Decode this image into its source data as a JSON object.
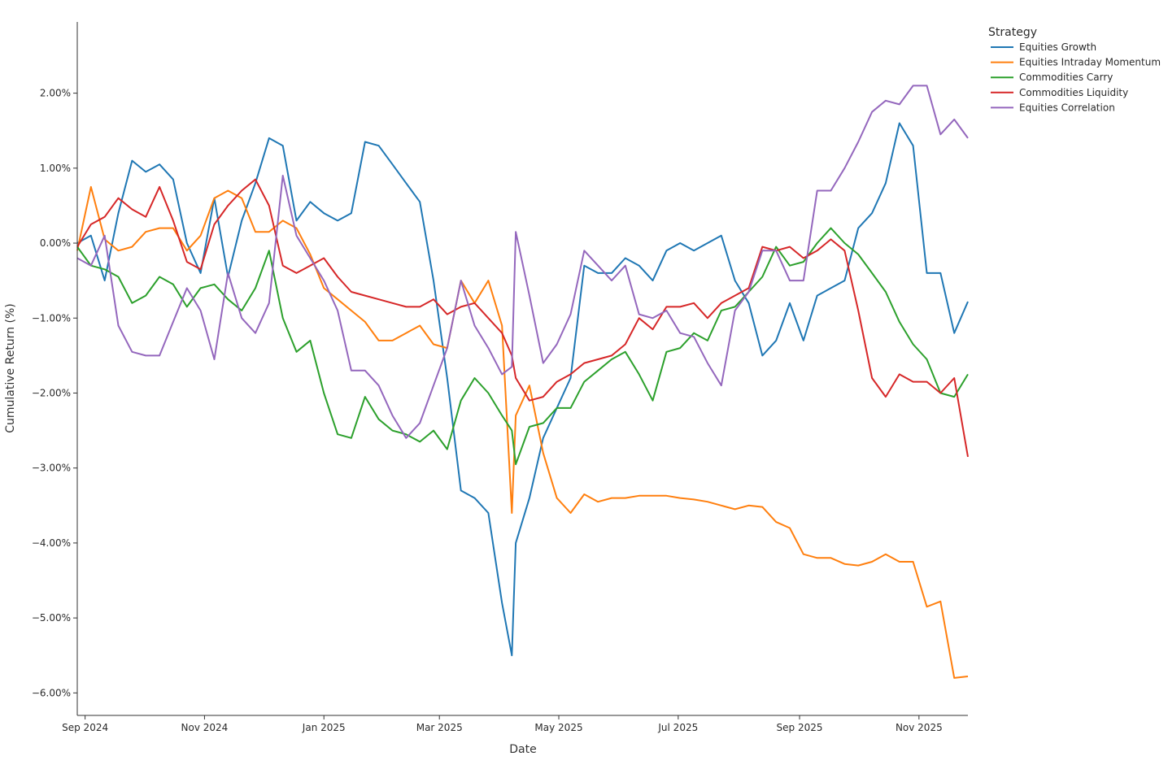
{
  "chart_data": {
    "type": "line",
    "title": "",
    "xlabel": "Date",
    "ylabel": "Cumulative Return (%)",
    "ylim": [
      -6.3,
      2.95
    ],
    "xlim": [
      "2024-08-28",
      "2025-11-26"
    ],
    "grid": false,
    "legend": {
      "title": "Strategy",
      "placement": "top-right, outside plot"
    },
    "x_ticks": [
      {
        "date": "2024-09-01",
        "label": "Sep 2024"
      },
      {
        "date": "2024-11-01",
        "label": "Nov 2024"
      },
      {
        "date": "2025-01-01",
        "label": "Jan 2025"
      },
      {
        "date": "2025-03-01",
        "label": "Mar 2025"
      },
      {
        "date": "2025-05-01",
        "label": "May 2025"
      },
      {
        "date": "2025-07-01",
        "label": "Jul 2025"
      },
      {
        "date": "2025-09-01",
        "label": "Sep 2025"
      },
      {
        "date": "2025-11-01",
        "label": "Nov 2025"
      }
    ],
    "y_ticks": [
      {
        "value": 2,
        "label": "2.00%"
      },
      {
        "value": 1,
        "label": "1.00%"
      },
      {
        "value": 0,
        "label": "0.00%"
      },
      {
        "value": -1,
        "label": "−1.00%"
      },
      {
        "value": -2,
        "label": "−2.00%"
      },
      {
        "value": -3,
        "label": "−3.00%"
      },
      {
        "value": -4,
        "label": "−4.00%"
      },
      {
        "value": -5,
        "label": "−5.00%"
      },
      {
        "value": -6,
        "label": "−6.00%"
      }
    ],
    "x": [
      "2024-08-28",
      "2024-09-04",
      "2024-09-11",
      "2024-09-18",
      "2024-09-25",
      "2024-10-02",
      "2024-10-09",
      "2024-10-16",
      "2024-10-23",
      "2024-10-30",
      "2024-11-06",
      "2024-11-13",
      "2024-11-20",
      "2024-11-27",
      "2024-12-04",
      "2024-12-11",
      "2024-12-18",
      "2024-12-25",
      "2025-01-01",
      "2025-01-08",
      "2025-01-15",
      "2025-01-22",
      "2025-01-29",
      "2025-02-05",
      "2025-02-12",
      "2025-02-19",
      "2025-02-26",
      "2025-03-05",
      "2025-03-12",
      "2025-03-19",
      "2025-03-26",
      "2025-04-02",
      "2025-04-07",
      "2025-04-09",
      "2025-04-16",
      "2025-04-23",
      "2025-04-30",
      "2025-05-07",
      "2025-05-14",
      "2025-05-21",
      "2025-05-28",
      "2025-06-04",
      "2025-06-11",
      "2025-06-18",
      "2025-06-25",
      "2025-07-02",
      "2025-07-09",
      "2025-07-16",
      "2025-07-23",
      "2025-07-30",
      "2025-08-06",
      "2025-08-13",
      "2025-08-20",
      "2025-08-27",
      "2025-09-03",
      "2025-09-10",
      "2025-09-17",
      "2025-09-24",
      "2025-10-01",
      "2025-10-08",
      "2025-10-15",
      "2025-10-22",
      "2025-10-29",
      "2025-11-05",
      "2025-11-12",
      "2025-11-19",
      "2025-11-26"
    ],
    "series": [
      {
        "name": "Equities Growth",
        "color": "#1f77b4",
        "values": [
          0.0,
          0.1,
          -0.5,
          0.4,
          1.1,
          0.95,
          1.05,
          0.85,
          0.0,
          -0.4,
          0.6,
          -0.45,
          0.3,
          0.8,
          1.4,
          1.3,
          0.3,
          0.55,
          0.4,
          0.3,
          0.4,
          1.35,
          1.3,
          1.05,
          0.8,
          0.55,
          -0.5,
          -1.8,
          -3.3,
          -3.4,
          -3.6,
          -4.8,
          -5.5,
          -4.0,
          -3.4,
          -2.6,
          -2.2,
          -1.8,
          -0.3,
          -0.4,
          -0.4,
          -0.2,
          -0.3,
          -0.5,
          -0.1,
          0.0,
          -0.1,
          0.0,
          0.1,
          -0.5,
          -0.8,
          -1.5,
          -1.3,
          -0.8,
          -1.3,
          -0.7,
          -0.6,
          -0.5,
          0.2,
          0.4,
          0.8,
          1.6,
          1.3,
          -0.4,
          -0.4,
          -1.2,
          -0.78
        ]
      },
      {
        "name": "Equities Intraday Momentum",
        "color": "#ff7f0e",
        "values": [
          -0.1,
          0.75,
          0.05,
          -0.1,
          -0.05,
          0.15,
          0.2,
          0.2,
          -0.1,
          0.1,
          0.6,
          0.7,
          0.6,
          0.15,
          0.15,
          0.3,
          0.2,
          -0.15,
          -0.6,
          -0.75,
          -0.9,
          -1.05,
          -1.3,
          -1.3,
          -1.2,
          -1.1,
          -1.35,
          -1.4,
          -0.5,
          -0.8,
          -0.5,
          -1.1,
          -3.6,
          -2.3,
          -1.9,
          -2.8,
          -3.4,
          -3.6,
          -3.35,
          -3.45,
          -3.4,
          -3.4,
          -3.37,
          -3.37,
          -3.37,
          -3.4,
          -3.42,
          -3.45,
          -3.5,
          -3.55,
          -3.5,
          -3.52,
          -3.72,
          -3.8,
          -4.15,
          -4.2,
          -4.2,
          -4.28,
          -4.3,
          -4.25,
          -4.15,
          -4.25,
          -4.25,
          -4.85,
          -4.78,
          -5.8,
          -5.78
        ]
      },
      {
        "name": "Commodities Carry",
        "color": "#2ca02c",
        "values": [
          -0.05,
          -0.3,
          -0.35,
          -0.45,
          -0.8,
          -0.7,
          -0.45,
          -0.55,
          -0.85,
          -0.6,
          -0.55,
          -0.75,
          -0.9,
          -0.6,
          -0.1,
          -1.0,
          -1.45,
          -1.3,
          -2.0,
          -2.55,
          -2.6,
          -2.05,
          -2.35,
          -2.5,
          -2.55,
          -2.65,
          -2.5,
          -2.75,
          -2.1,
          -1.8,
          -2.0,
          -2.3,
          -2.5,
          -2.95,
          -2.45,
          -2.4,
          -2.2,
          -2.2,
          -1.85,
          -1.7,
          -1.55,
          -1.45,
          -1.75,
          -2.1,
          -1.45,
          -1.4,
          -1.2,
          -1.3,
          -0.9,
          -0.85,
          -0.65,
          -0.45,
          -0.05,
          -0.3,
          -0.25,
          0.0,
          0.2,
          0.0,
          -0.15,
          -0.4,
          -0.65,
          -1.05,
          -1.35,
          -1.55,
          -2.0,
          -2.05,
          -1.75
        ]
      },
      {
        "name": "Commodities Liquidity",
        "color": "#d62728",
        "values": [
          -0.05,
          0.25,
          0.35,
          0.6,
          0.45,
          0.35,
          0.75,
          0.3,
          -0.25,
          -0.35,
          0.25,
          0.5,
          0.7,
          0.85,
          0.5,
          -0.3,
          -0.4,
          -0.3,
          -0.2,
          -0.45,
          -0.65,
          -0.7,
          -0.75,
          -0.8,
          -0.85,
          -0.85,
          -0.75,
          -0.95,
          -0.85,
          -0.8,
          -1.0,
          -1.2,
          -1.5,
          -1.8,
          -2.1,
          -2.05,
          -1.85,
          -1.75,
          -1.6,
          -1.55,
          -1.5,
          -1.35,
          -1.0,
          -1.15,
          -0.85,
          -0.85,
          -0.8,
          -1.0,
          -0.8,
          -0.7,
          -0.6,
          -0.05,
          -0.1,
          -0.05,
          -0.2,
          -0.1,
          0.05,
          -0.1,
          -0.9,
          -1.8,
          -2.05,
          -1.75,
          -1.85,
          -1.85,
          -2.0,
          -1.8,
          -2.85
        ]
      },
      {
        "name": "Equities Correlation",
        "color": "#9467bd",
        "values": [
          -0.2,
          -0.3,
          0.1,
          -1.1,
          -1.45,
          -1.5,
          -1.5,
          -1.05,
          -0.6,
          -0.9,
          -1.55,
          -0.4,
          -1.0,
          -1.2,
          -0.8,
          0.9,
          0.1,
          -0.2,
          -0.5,
          -0.9,
          -1.7,
          -1.7,
          -1.9,
          -2.3,
          -2.6,
          -2.4,
          -1.9,
          -1.4,
          -0.5,
          -1.1,
          -1.4,
          -1.75,
          -1.65,
          0.15,
          -0.7,
          -1.6,
          -1.35,
          -0.95,
          -0.1,
          -0.3,
          -0.5,
          -0.3,
          -0.95,
          -1.0,
          -0.9,
          -1.2,
          -1.25,
          -1.6,
          -1.9,
          -0.9,
          -0.65,
          -0.1,
          -0.1,
          -0.5,
          -0.5,
          0.7,
          0.7,
          1.0,
          1.35,
          1.75,
          1.9,
          1.85,
          2.1,
          2.1,
          1.45,
          1.65,
          1.4
        ]
      }
    ]
  }
}
